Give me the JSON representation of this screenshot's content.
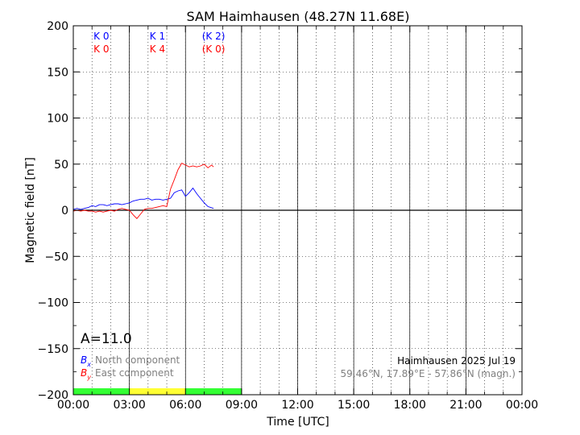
{
  "chart_data": {
    "type": "line",
    "title": "SAM Haimhausen (48.27N 11.68E)",
    "xlabel": "Time [UTC]",
    "ylabel": "Magnetic field [nT]",
    "xlim": [
      0,
      24
    ],
    "ylim": [
      -200,
      200
    ],
    "x_ticks": [
      0,
      3,
      6,
      9,
      12,
      15,
      18,
      21,
      24
    ],
    "x_tick_labels": [
      "00:00",
      "03:00",
      "06:00",
      "09:00",
      "12:00",
      "15:00",
      "18:00",
      "21:00",
      "00:00"
    ],
    "y_ticks": [
      -200,
      -150,
      -100,
      -50,
      0,
      50,
      100,
      150,
      200
    ],
    "y_tick_labels": [
      "−200",
      "−150",
      "−100",
      "−50",
      "0",
      "50",
      "100",
      "150",
      "200"
    ],
    "minor_x_ticks": [
      1,
      2,
      4,
      5,
      7,
      8,
      10,
      11,
      13,
      14,
      16,
      17,
      19,
      20,
      22,
      23
    ],
    "minor_y_ticks": [
      -175,
      -125,
      -75,
      -25,
      25,
      75,
      125,
      175
    ],
    "grid": true,
    "zero_line": 0,
    "period_separators": [
      3,
      6,
      9,
      12,
      15,
      18,
      21
    ],
    "series": [
      {
        "name": "North component",
        "symbol": "B",
        "subscript": "x",
        "color": "#0000ff",
        "x": [
          0,
          0.2,
          0.4,
          0.6,
          0.8,
          1.0,
          1.2,
          1.4,
          1.6,
          1.8,
          2.0,
          2.2,
          2.4,
          2.6,
          2.8,
          3.0,
          3.2,
          3.4,
          3.6,
          3.8,
          4.0,
          4.2,
          4.4,
          4.6,
          4.8,
          5.0,
          5.2,
          5.4,
          5.6,
          5.8,
          6.0,
          6.2,
          6.4,
          6.6,
          6.8,
          7.0,
          7.2,
          7.5
        ],
        "y": [
          1,
          2,
          1,
          2,
          3,
          5,
          4,
          6,
          6,
          5,
          6,
          7,
          7,
          6,
          7,
          8,
          10,
          11,
          12,
          12,
          13,
          11,
          12,
          12,
          11,
          12,
          13,
          19,
          21,
          22,
          15,
          19,
          24,
          18,
          13,
          8,
          4,
          2
        ]
      },
      {
        "name": "East component",
        "symbol": "B",
        "subscript": "y",
        "color": "#ff0000",
        "x": [
          0,
          0.2,
          0.4,
          0.6,
          0.8,
          1.0,
          1.2,
          1.4,
          1.6,
          1.8,
          2.0,
          2.2,
          2.4,
          2.6,
          2.8,
          3.0,
          3.2,
          3.4,
          3.6,
          3.8,
          4.0,
          4.2,
          4.4,
          4.6,
          4.8,
          5.0,
          5.2,
          5.4,
          5.6,
          5.8,
          6.0,
          6.2,
          6.4,
          6.6,
          6.8,
          7.0,
          7.2,
          7.4,
          7.5
        ],
        "y": [
          -1,
          0,
          -1,
          0,
          -1,
          -1,
          -2,
          -1,
          -2,
          -1,
          0,
          -1,
          1,
          2,
          1,
          0,
          -5,
          -9,
          -4,
          1,
          2,
          2,
          3,
          4,
          5,
          4,
          23,
          33,
          44,
          51,
          49,
          47,
          48,
          47,
          48,
          50,
          46,
          49,
          47
        ]
      }
    ],
    "legend_position": "bottom-left",
    "k_indices": [
      {
        "x": 1.5,
        "bx": "K 0",
        "by": "K 0"
      },
      {
        "x": 4.5,
        "bx": "K 1",
        "by": "K 4"
      },
      {
        "x": 7.5,
        "bx": "(K 2)",
        "by": "(K 0)"
      }
    ],
    "a_index": "A=11.0",
    "station_date": "Haimhausen 2025 Jul 19",
    "coordinates": "59.46°N, 17.89°E - 57.86°N (magn.)",
    "activity_bar": [
      {
        "start": 0,
        "end": 3,
        "color": "#33ff33"
      },
      {
        "start": 3,
        "end": 6,
        "color": "#ffff33"
      },
      {
        "start": 6,
        "end": 9,
        "color": "#33ff33"
      }
    ]
  }
}
